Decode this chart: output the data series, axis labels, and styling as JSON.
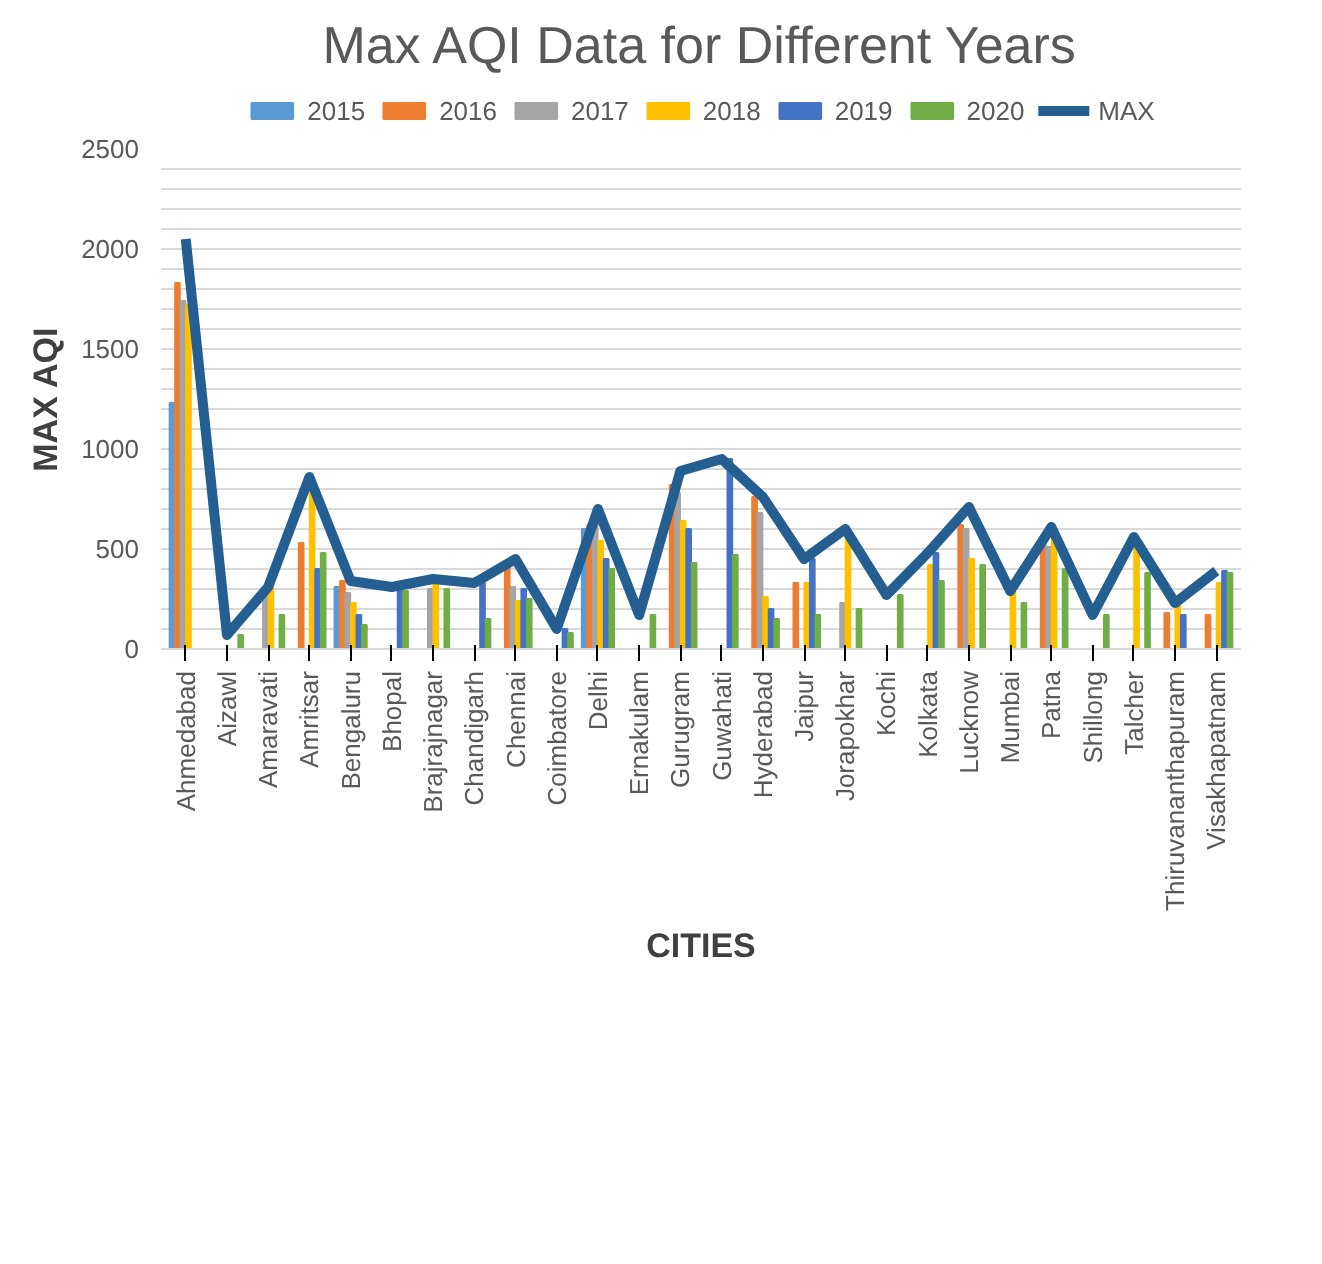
{
  "chart_data": {
    "type": "bar",
    "title": "Max AQI Data for Different Years",
    "xlabel": "CITIES",
    "ylabel": "MAX AQI",
    "categories": [
      "Ahmedabad",
      "Aizawl",
      "Amaravati",
      "Amritsar",
      "Bengaluru",
      "Bhopal",
      "Brajrajnagar",
      "Chandigarh",
      "Chennai",
      "Coimbatore",
      "Delhi",
      "Ernakulam",
      "Gurugram",
      "Guwahati",
      "Hyderabad",
      "Jaipur",
      "Jorapokhar",
      "Kochi",
      "Kolkata",
      "Lucknow",
      "Mumbai",
      "Patna",
      "Shillong",
      "Talcher",
      "Thiruvananthapuram",
      "Visakhapatnam"
    ],
    "ylim": [
      0,
      2500
    ],
    "yticks": [
      0,
      {
        "value": 100,
        "label": null
      },
      {
        "value": 200,
        "label": null
      },
      {
        "value": 300,
        "label": null
      },
      {
        "value": 400,
        "label": null
      },
      500,
      {
        "value": 600,
        "label": null
      },
      {
        "value": 700,
        "label": null
      },
      {
        "value": 800,
        "label": null
      },
      {
        "value": 900,
        "label": null
      },
      1000,
      {
        "value": 1100,
        "label": null
      },
      {
        "value": 1200,
        "label": null
      },
      {
        "value": 1300,
        "label": null
      },
      {
        "value": 1400,
        "label": null
      },
      1500,
      {
        "value": 1600,
        "label": null
      },
      {
        "value": 1700,
        "label": null
      },
      {
        "value": 1800,
        "label": null
      },
      {
        "value": 1900,
        "label": null
      },
      2000,
      {
        "value": 2100,
        "label": null
      },
      {
        "value": 2200,
        "label": null
      },
      {
        "value": 2300,
        "label": null
      },
      {
        "value": 2400,
        "label": null
      },
      2500
    ],
    "grid": "y",
    "legend": "top",
    "series": [
      {
        "name": "2015",
        "color": "#5b9bd5",
        "values": [
          1230,
          null,
          null,
          null,
          310,
          null,
          null,
          null,
          null,
          null,
          600,
          null,
          null,
          null,
          null,
          null,
          null,
          null,
          null,
          null,
          null,
          null,
          null,
          null,
          null,
          null
        ]
      },
      {
        "name": "2016",
        "color": "#ed7d31",
        "values": [
          1830,
          null,
          null,
          530,
          340,
          null,
          null,
          null,
          420,
          null,
          620,
          null,
          820,
          null,
          760,
          330,
          null,
          null,
          null,
          620,
          null,
          520,
          null,
          null,
          180,
          170
        ]
      },
      {
        "name": "2017",
        "color": "#a5a5a5",
        "values": [
          1740,
          null,
          290,
          null,
          280,
          null,
          300,
          null,
          310,
          null,
          650,
          null,
          780,
          null,
          680,
          null,
          230,
          null,
          null,
          600,
          null,
          510,
          null,
          null,
          null,
          null
        ]
      },
      {
        "name": "2018",
        "color": "#ffc000",
        "values": [
          1720,
          null,
          310,
          780,
          230,
          null,
          340,
          null,
          240,
          null,
          540,
          null,
          640,
          null,
          260,
          330,
          560,
          null,
          420,
          450,
          290,
          580,
          null,
          520,
          230,
          330
        ]
      },
      {
        "name": "2019",
        "color": "#4472c4",
        "values": [
          null,
          null,
          null,
          400,
          170,
          310,
          null,
          330,
          300,
          100,
          450,
          null,
          600,
          950,
          200,
          450,
          null,
          null,
          480,
          null,
          null,
          null,
          null,
          null,
          170,
          390
        ]
      },
      {
        "name": "2020",
        "color": "#70ad47",
        "values": [
          null,
          70,
          170,
          480,
          120,
          290,
          300,
          150,
          250,
          80,
          400,
          170,
          430,
          470,
          150,
          170,
          200,
          270,
          340,
          420,
          230,
          400,
          170,
          380,
          null,
          380
        ]
      },
      {
        "name": "MAX",
        "type": "line",
        "color": "#255e91",
        "values": [
          2050,
          70,
          310,
          860,
          340,
          310,
          350,
          330,
          450,
          100,
          700,
          170,
          890,
          950,
          760,
          450,
          600,
          270,
          480,
          710,
          290,
          610,
          170,
          560,
          230,
          390
        ]
      }
    ]
  }
}
